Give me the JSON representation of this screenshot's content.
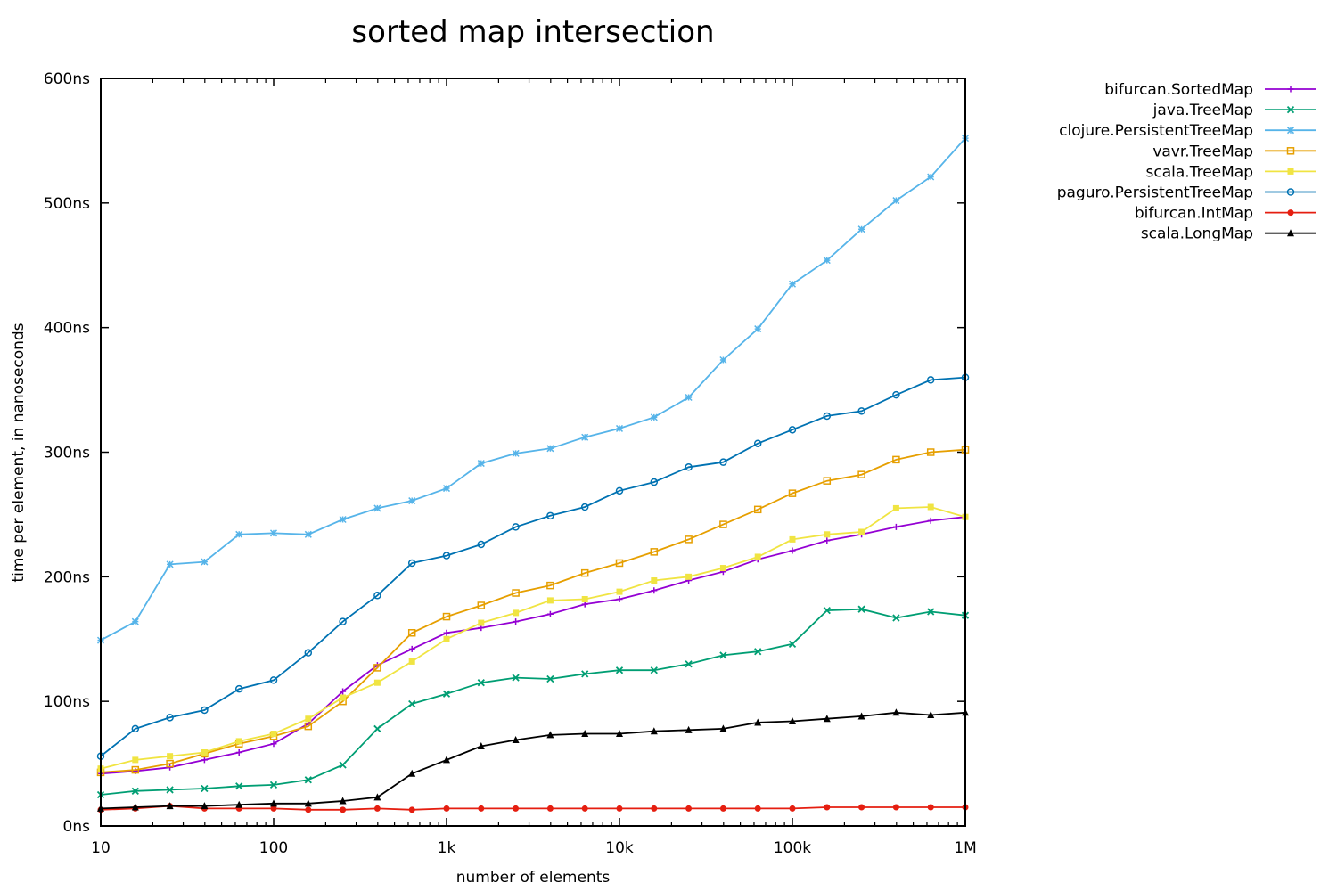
{
  "chart_data": {
    "type": "line",
    "title": "sorted map intersection",
    "xlabel": "number of elements",
    "ylabel": "time per element, in nanoseconds",
    "x_scale": "log",
    "xlim": [
      10,
      1000000
    ],
    "ylim": [
      0,
      600
    ],
    "x_ticks": [
      {
        "value": 10,
        "label": "10"
      },
      {
        "value": 100,
        "label": "100"
      },
      {
        "value": 1000,
        "label": "1k"
      },
      {
        "value": 10000,
        "label": "10k"
      },
      {
        "value": 100000,
        "label": "100k"
      },
      {
        "value": 1000000,
        "label": "1M"
      }
    ],
    "y_ticks": [
      {
        "value": 0,
        "label": "0ns"
      },
      {
        "value": 100,
        "label": "100ns"
      },
      {
        "value": 200,
        "label": "200ns"
      },
      {
        "value": 300,
        "label": "300ns"
      },
      {
        "value": 400,
        "label": "400ns"
      },
      {
        "value": 500,
        "label": "500ns"
      },
      {
        "value": 600,
        "label": "600ns"
      }
    ],
    "grid": false,
    "legend_position": "top-right",
    "x": [
      10,
      15.85,
      25.12,
      39.81,
      63.1,
      100,
      158.5,
      251.2,
      398.1,
      631,
      1000,
      1585,
      2512,
      3981,
      6310,
      10000,
      15850,
      25120,
      39810,
      63100,
      100000,
      158500,
      251200,
      398100,
      631000,
      1000000
    ],
    "series": [
      {
        "name": "bifurcan.SortedMap",
        "color": "#9400d3",
        "marker": "plus",
        "values": [
          42,
          44,
          47,
          53,
          59,
          66,
          82,
          108,
          129,
          142,
          155,
          159,
          164,
          170,
          178,
          182,
          189,
          197,
          204,
          214,
          221,
          229,
          234,
          240,
          245,
          248
        ]
      },
      {
        "name": "java.TreeMap",
        "color": "#009e73",
        "marker": "cross",
        "values": [
          25,
          28,
          29,
          30,
          32,
          33,
          37,
          49,
          78,
          98,
          106,
          115,
          119,
          118,
          122,
          125,
          125,
          130,
          137,
          140,
          146,
          173,
          174,
          167,
          172,
          169
        ]
      },
      {
        "name": "clojure.PersistentTreeMap",
        "color": "#56b4e9",
        "marker": "star",
        "values": [
          149,
          164,
          210,
          212,
          234,
          235,
          234,
          246,
          255,
          261,
          271,
          291,
          299,
          303,
          312,
          319,
          328,
          344,
          374,
          399,
          435,
          454,
          479,
          502,
          521,
          552
        ]
      },
      {
        "name": "vavr.TreeMap",
        "color": "#e69f00",
        "marker": "square",
        "values": [
          43,
          45,
          50,
          58,
          66,
          72,
          80,
          100,
          127,
          155,
          168,
          177,
          187,
          193,
          203,
          211,
          220,
          230,
          242,
          254,
          267,
          277,
          282,
          294,
          300,
          302
        ]
      },
      {
        "name": "scala.TreeMap",
        "color": "#f0e442",
        "marker": "filled-square",
        "values": [
          46,
          53,
          56,
          59,
          68,
          74,
          86,
          103,
          115,
          132,
          150,
          163,
          171,
          181,
          182,
          188,
          197,
          200,
          207,
          216,
          230,
          234,
          236,
          255,
          256,
          248
        ]
      },
      {
        "name": "paguro.PersistentTreeMap",
        "color": "#0072b2",
        "marker": "circle",
        "values": [
          56,
          78,
          87,
          93,
          110,
          117,
          139,
          164,
          185,
          211,
          217,
          226,
          240,
          249,
          256,
          269,
          276,
          288,
          292,
          307,
          318,
          329,
          333,
          346,
          358,
          360
        ]
      },
      {
        "name": "bifurcan.IntMap",
        "color": "#e51e10",
        "marker": "filled-circle",
        "values": [
          13,
          14,
          16,
          14,
          14,
          14,
          13,
          13,
          14,
          13,
          14,
          14,
          14,
          14,
          14,
          14,
          14,
          14,
          14,
          14,
          14,
          15,
          15,
          15,
          15,
          15
        ]
      },
      {
        "name": "scala.LongMap",
        "color": "#000000",
        "marker": "filled-triangle",
        "values": [
          14,
          15,
          16,
          16,
          17,
          18,
          18,
          20,
          23,
          42,
          53,
          64,
          69,
          73,
          74,
          74,
          76,
          77,
          78,
          83,
          84,
          86,
          88,
          91,
          89,
          91
        ]
      }
    ]
  }
}
